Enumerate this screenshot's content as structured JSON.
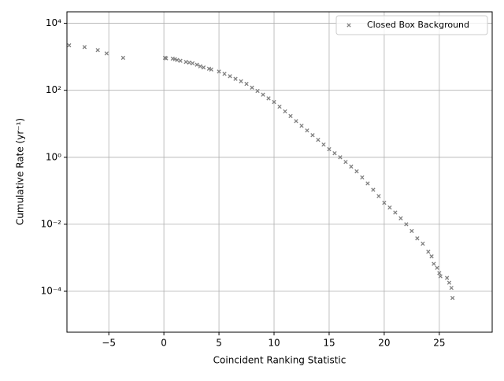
{
  "chart_data": {
    "type": "scatter",
    "xlabel": "Coincident Ranking Statistic",
    "ylabel": "Cumulative Rate (yr⁻¹)",
    "series": [
      {
        "name": "Closed Box Background",
        "color": "#808080",
        "marker": "x",
        "x": [
          -8.6,
          -7.2,
          -6.0,
          -5.2,
          -3.7,
          0.1,
          0.2,
          0.8,
          1.0,
          1.2,
          1.5,
          2.0,
          2.3,
          2.6,
          3.0,
          3.3,
          3.6,
          4.1,
          4.3,
          5.0,
          5.5,
          6.0,
          6.5,
          7.0,
          7.5,
          8.0,
          8.5,
          9.0,
          9.5,
          10.0,
          10.5,
          11.0,
          11.5,
          12.0,
          12.5,
          13.0,
          13.5,
          14.0,
          14.5,
          15.0,
          15.5,
          16.0,
          16.5,
          17.0,
          17.5,
          18.0,
          18.5,
          19.0,
          19.5,
          20.0,
          20.5,
          21.0,
          21.5,
          22.0,
          22.5,
          23.0,
          23.5,
          24.0,
          24.3,
          24.5,
          24.8,
          25.0,
          25.1,
          25.7,
          25.9,
          26.1,
          26.2
        ],
        "values": [
          2200,
          1950,
          1580,
          1260,
          930,
          930,
          900,
          880,
          850,
          800,
          760,
          700,
          670,
          640,
          580,
          520,
          480,
          440,
          417,
          363,
          309,
          263,
          219,
          186,
          155,
          120,
          95.5,
          74.1,
          57.5,
          44.7,
          32.4,
          23.4,
          17.0,
          12.0,
          8.71,
          6.31,
          4.57,
          3.31,
          2.4,
          1.74,
          1.32,
          1.0,
          0.724,
          0.525,
          0.38,
          0.251,
          0.166,
          0.107,
          0.0692,
          0.0437,
          0.0316,
          0.0224,
          0.0151,
          0.01,
          0.00631,
          0.0038,
          0.00263,
          0.00151,
          0.0011,
          0.00066,
          0.0005,
          0.00035,
          0.00028,
          0.00025,
          0.00018,
          0.000126,
          6.3e-05
        ]
      }
    ],
    "xlim": [
      -8.8,
      29.8
    ],
    "xticks": [
      {
        "value": -5,
        "label": "−5"
      },
      0,
      5,
      10,
      15,
      20,
      25
    ],
    "ylim": [
      6e-06,
      22000
    ],
    "yticks": [
      {
        "value": 0.0001,
        "label": "10⁻⁴"
      },
      {
        "value": 0.01,
        "label": "10⁻²"
      },
      {
        "value": 1,
        "label": "10⁰"
      },
      {
        "value": 100,
        "label": "10²"
      },
      {
        "value": 10000,
        "label": "10⁴"
      }
    ],
    "log_y": true,
    "grid": true,
    "legend": "upper right"
  }
}
